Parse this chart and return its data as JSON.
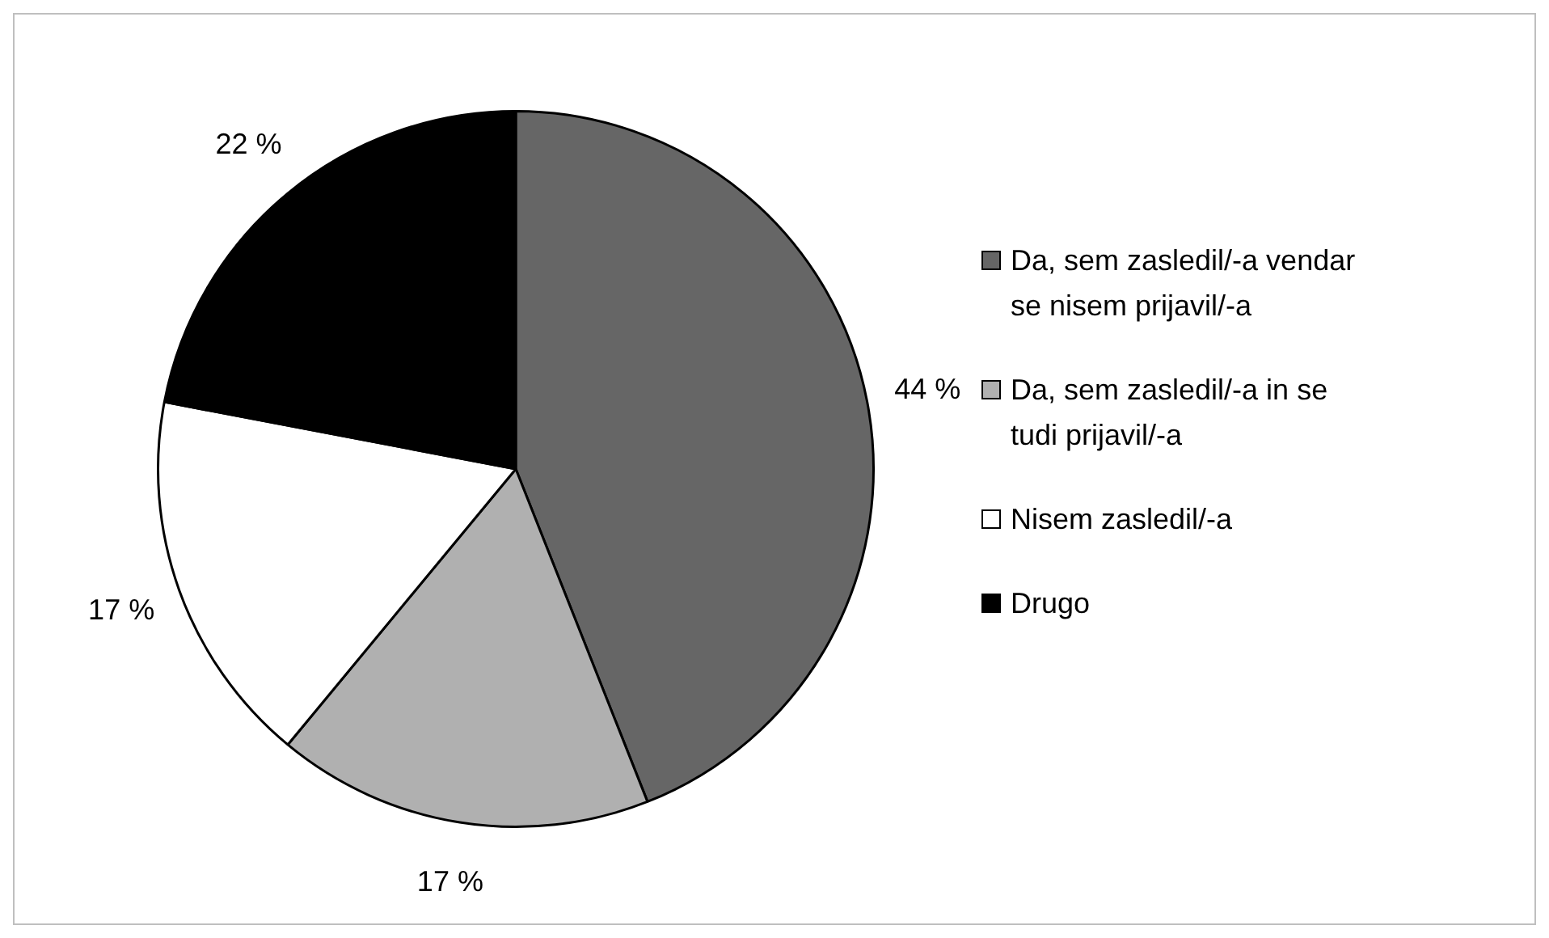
{
  "chart_data": {
    "type": "pie",
    "categories": [
      "Da, sem zasledil/-a vendar se nisem prijavil/-a",
      "Da, sem zasledil/-a in se tudi prijavil/-a",
      "Nisem zasledil/-a",
      "Drugo"
    ],
    "values": [
      44,
      17,
      17,
      22
    ],
    "colors": [
      "#666666",
      "#b0b0b0",
      "#ffffff",
      "#000000"
    ],
    "value_labels": [
      "44 %",
      "17 %",
      "17 %",
      "22 %"
    ],
    "legend": "right"
  }
}
